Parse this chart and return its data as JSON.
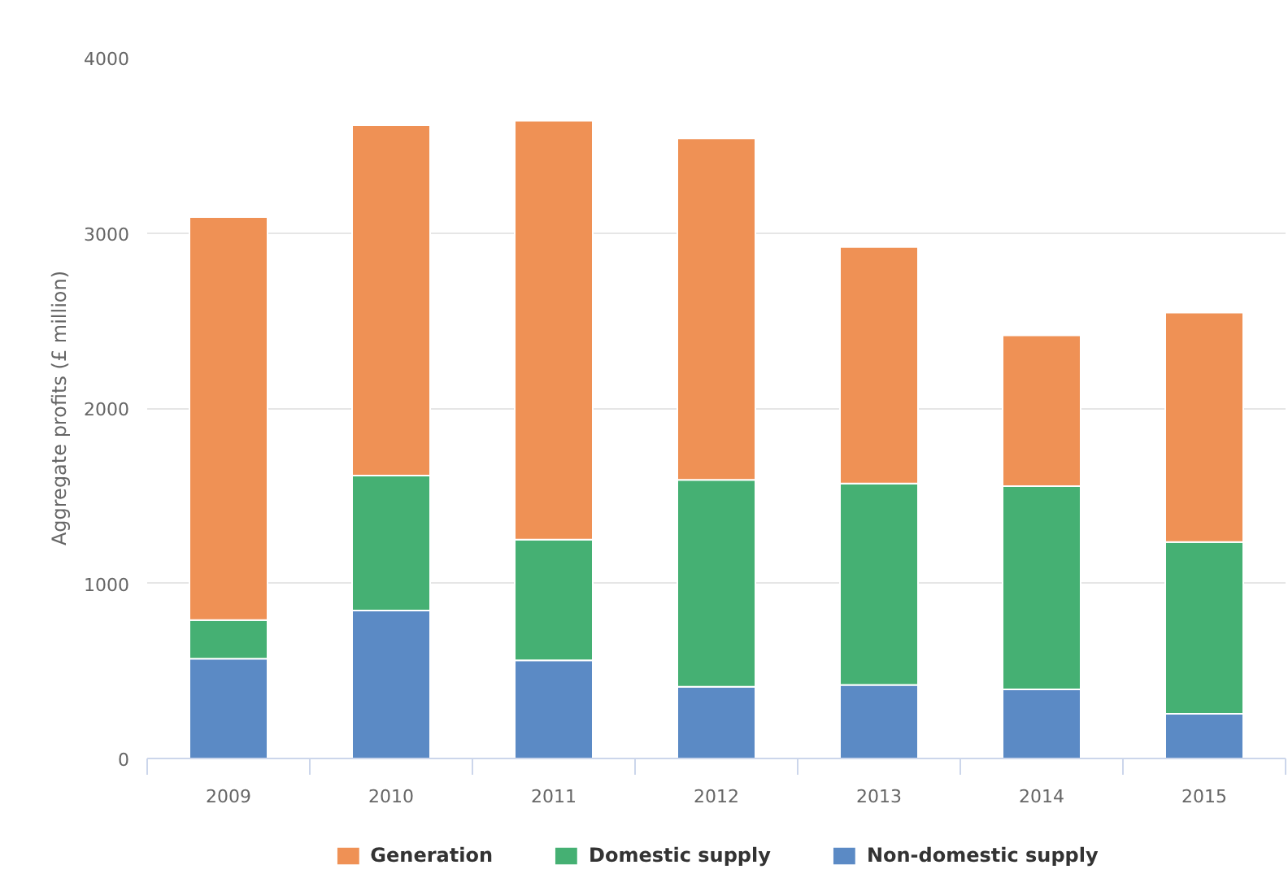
{
  "chart_data": {
    "type": "bar",
    "stacked": true,
    "ylabel": "Aggregate profits (£ million)",
    "categories": [
      "2009",
      "2010",
      "2011",
      "2012",
      "2013",
      "2014",
      "2015"
    ],
    "series": [
      {
        "name": "Non-domestic supply",
        "color": "#5b8ac5",
        "values": [
          570,
          845,
          560,
          410,
          420,
          395,
          255
        ]
      },
      {
        "name": "Domestic supply",
        "color": "#45b073",
        "values": [
          220,
          770,
          690,
          1180,
          1150,
          1160,
          980
        ]
      },
      {
        "name": "Generation",
        "color": "#ef9155",
        "values": [
          2300,
          2000,
          2390,
          1950,
          1350,
          860,
          1310
        ]
      }
    ],
    "ylim": [
      0,
      4000
    ],
    "yticks": [
      0,
      1000,
      2000,
      3000,
      4000
    ],
    "grid": "y",
    "legend": "bottom"
  }
}
